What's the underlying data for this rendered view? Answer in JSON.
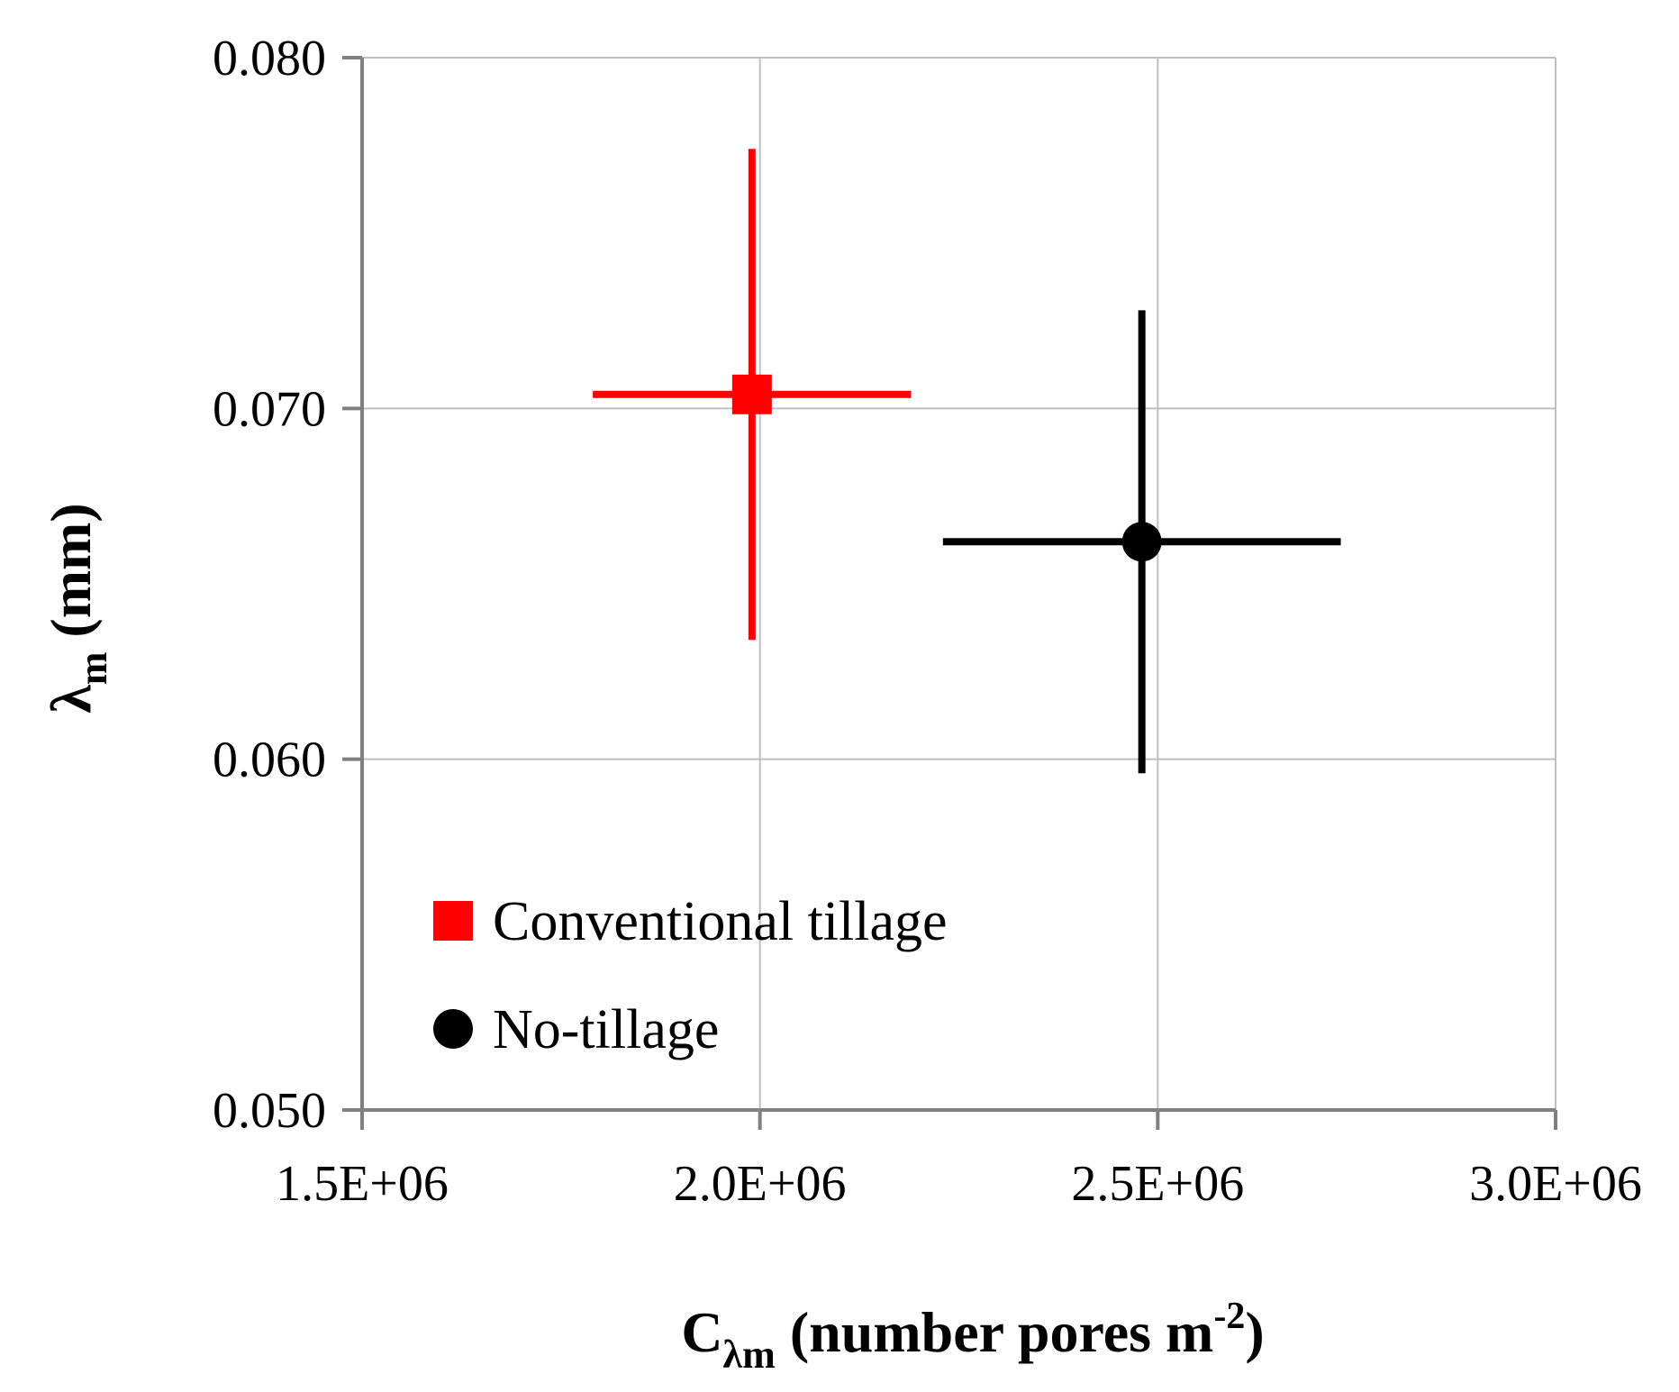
{
  "chart_data": {
    "type": "scatter",
    "xlabel": {
      "main": "C",
      "sub": "λm",
      "rest": " (number pores m",
      "sup": "-2",
      "close": ")"
    },
    "ylabel": {
      "main": "λ",
      "sub": "m",
      "rest": " (mm)"
    },
    "xlim": [
      1500000,
      3000000
    ],
    "ylim": [
      0.05,
      0.08
    ],
    "x_ticks": [
      1500000,
      2000000,
      2500000,
      3000000
    ],
    "x_tick_labels": [
      "1.5E+06",
      "2.0E+06",
      "2.5E+06",
      "3.0E+06"
    ],
    "y_ticks": [
      0.05,
      0.06,
      0.07,
      0.08
    ],
    "y_tick_labels": [
      "0.050",
      "0.060",
      "0.070",
      "0.080"
    ],
    "grid": true,
    "legend_position": "bottom-left",
    "series": [
      {
        "name": "Conventional tillage",
        "color": "#ff0000",
        "marker": "square",
        "points": [
          {
            "x": 1990000,
            "y": 0.0704,
            "x_err": 200000,
            "y_err": 0.007
          }
        ]
      },
      {
        "name": "No-tillage",
        "color": "#000000",
        "marker": "circle",
        "points": [
          {
            "x": 2480000,
            "y": 0.0662,
            "x_err": 250000,
            "y_err": 0.0066
          }
        ]
      }
    ]
  }
}
